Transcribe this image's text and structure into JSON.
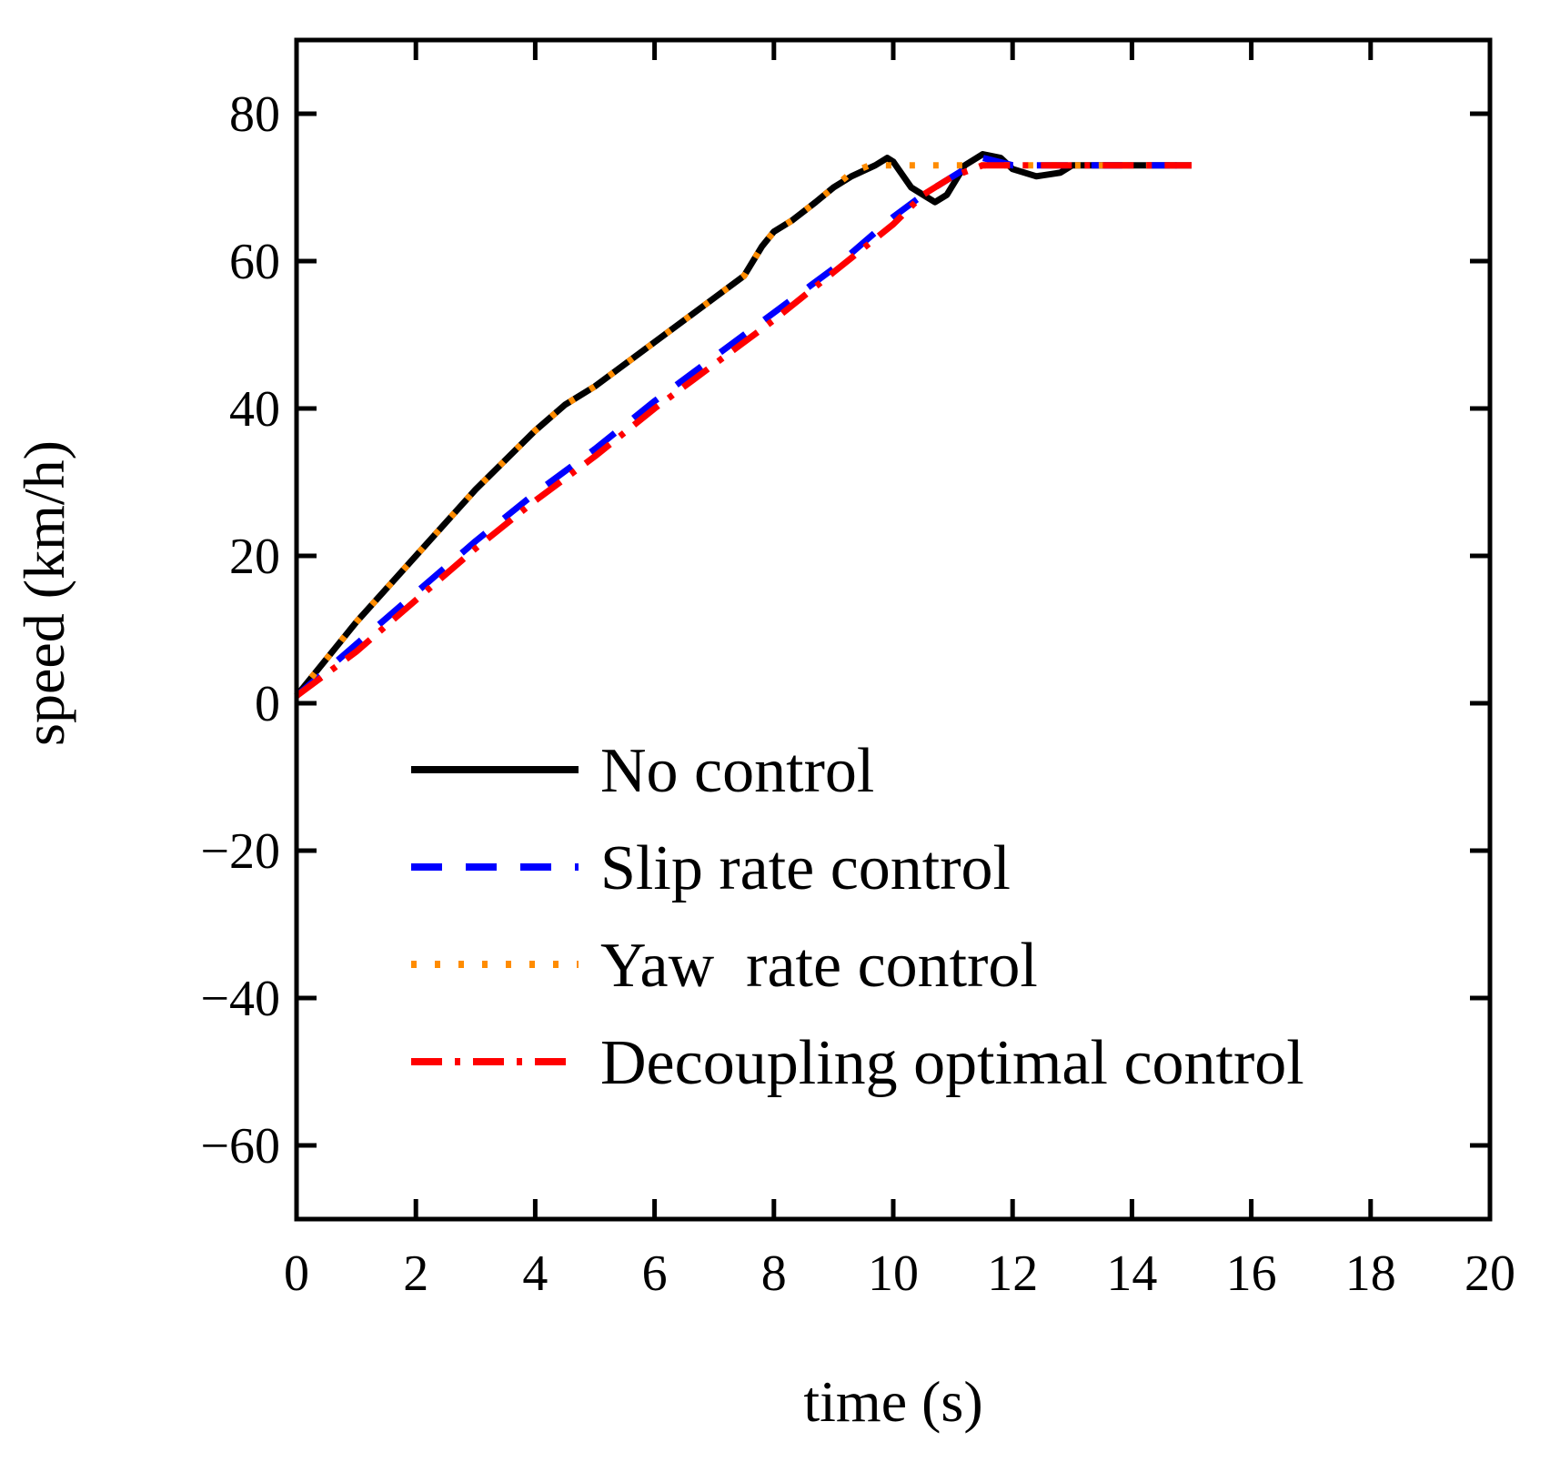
{
  "chart_data": {
    "type": "line",
    "title": "",
    "xlabel": "time (s)",
    "ylabel": "speed (km/h)",
    "xlim": [
      0,
      20
    ],
    "ylim": [
      -70,
      90
    ],
    "xticks": [
      "0",
      "2",
      "4",
      "6",
      "8",
      "10",
      "12",
      "14",
      "16",
      "18",
      "20"
    ],
    "yticks": [
      "−60",
      "−40",
      "−20",
      "0",
      "20",
      "40",
      "60",
      "80"
    ],
    "ytick_values": [
      -60,
      -40,
      -20,
      0,
      20,
      40,
      60,
      80
    ],
    "xtick_values": [
      0,
      2,
      4,
      6,
      8,
      10,
      12,
      14,
      16,
      18,
      20
    ],
    "grid": false,
    "legend_position": "lower-left",
    "series": [
      {
        "name": "No control",
        "color": "#000000",
        "style": "solid",
        "x": [
          0,
          0.5,
          1,
          2,
          3,
          4,
          4.5,
          5,
          6,
          7,
          7.5,
          7.8,
          8,
          8.3,
          8.7,
          9,
          9.3,
          9.7,
          9.9,
          10,
          10.3,
          10.7,
          10.9,
          11.2,
          11.5,
          11.8,
          12,
          12.4,
          12.8,
          13,
          14,
          15
        ],
        "y": [
          1,
          6,
          11,
          20,
          29,
          37,
          40.5,
          43,
          49,
          55,
          58,
          62,
          64,
          65.5,
          68,
          70,
          71.5,
          73,
          74,
          73.5,
          70,
          68,
          69,
          73,
          74.5,
          74,
          72.5,
          71.5,
          72,
          73,
          73,
          73
        ]
      },
      {
        "name": "Slip rate control",
        "color": "#0000ff",
        "style": "dashed",
        "x": [
          0,
          1,
          2,
          3,
          4,
          5,
          6,
          7,
          8,
          9,
          10,
          10.5,
          11,
          11.5,
          12,
          13,
          14,
          15
        ],
        "y": [
          1,
          8,
          15,
          22,
          28.5,
          34.5,
          41,
          47,
          53,
          59,
          66,
          69,
          71.5,
          74,
          73,
          73,
          73,
          73
        ]
      },
      {
        "name": "Yaw  rate control",
        "color": "#ff8c00",
        "style": "dotted",
        "x": [
          0,
          0.5,
          1,
          2,
          3,
          4,
          4.5,
          5,
          6,
          7,
          7.5,
          7.8,
          8,
          8.3,
          8.7,
          9,
          9.3,
          9.6,
          9.8,
          10,
          11,
          12,
          13,
          14,
          15
        ],
        "y": [
          1,
          6,
          11,
          20,
          29,
          37,
          40.5,
          43,
          49,
          55,
          58,
          62,
          64,
          65.5,
          68,
          70,
          72,
          73,
          73,
          73,
          73,
          73,
          73,
          73,
          73
        ]
      },
      {
        "name": "Decoupling optimal control",
        "color": "#ff0000",
        "style": "dashdot",
        "x": [
          0,
          1,
          2,
          3,
          4,
          5,
          6,
          7,
          8,
          9,
          10,
          10.5,
          11,
          11.5,
          12,
          13,
          14,
          15
        ],
        "y": [
          1,
          7,
          14,
          21,
          27.5,
          33.5,
          40,
          46,
          52,
          58.5,
          65,
          69,
          71.5,
          73,
          73,
          73,
          73,
          73
        ]
      }
    ]
  }
}
